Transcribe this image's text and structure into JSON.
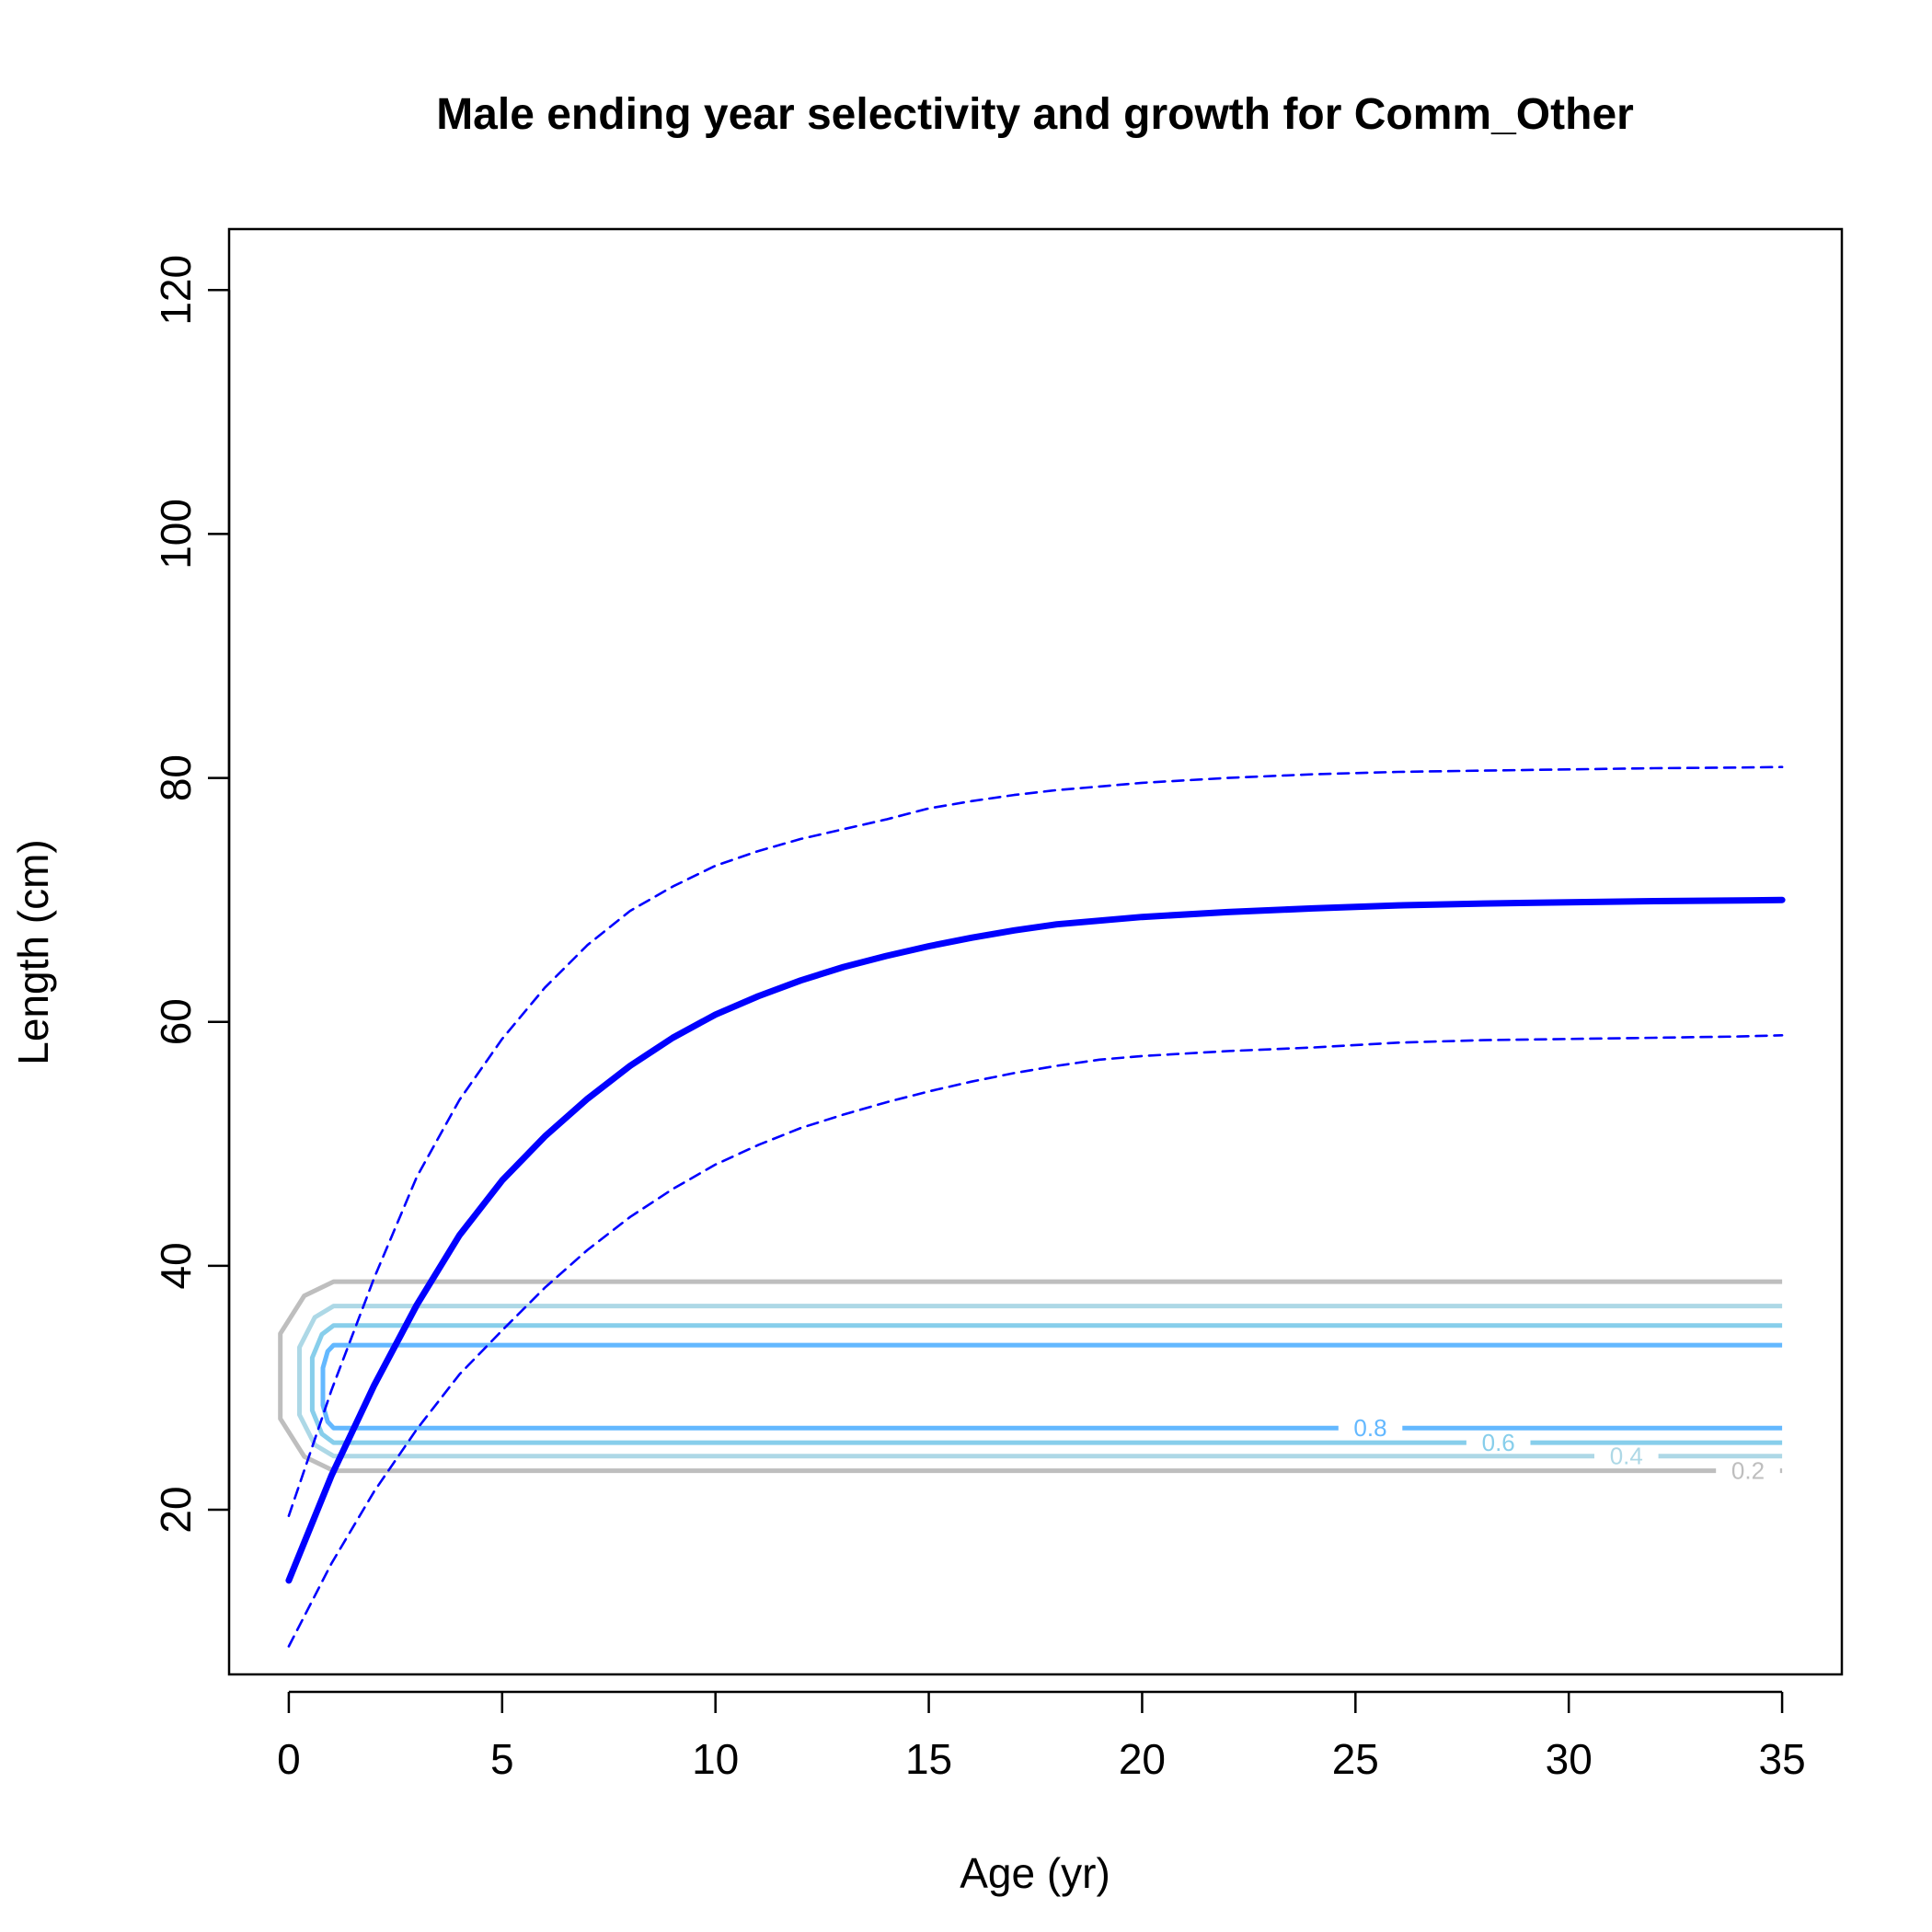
{
  "chart_data": {
    "type": "line",
    "title": "Male ending year selectivity and growth for Comm_Other",
    "xlabel": "Age (yr)",
    "ylabel": "Length (cm)",
    "xlim": [
      -1.4,
      36.4
    ],
    "ylim": [
      6.5,
      125
    ],
    "xticks": [
      0,
      5,
      10,
      15,
      20,
      25,
      30,
      35
    ],
    "yticks": [
      20,
      40,
      60,
      80,
      100,
      120
    ],
    "series": [
      {
        "role": "mean length at age",
        "style": "solid",
        "color": "#0000FF",
        "x": [
          0,
          1,
          2,
          3,
          4,
          5,
          6,
          7,
          8,
          9,
          10,
          11,
          12,
          13,
          14,
          15,
          16,
          17,
          18,
          19,
          20,
          22,
          24,
          26,
          28,
          30,
          32,
          34,
          35
        ],
        "y": [
          14.2,
          22.8,
          30.2,
          36.8,
          42.5,
          47.0,
          50.6,
          53.7,
          56.4,
          58.7,
          60.6,
          62.1,
          63.4,
          64.5,
          65.4,
          66.2,
          66.9,
          67.5,
          68.0,
          68.3,
          68.6,
          69.0,
          69.3,
          69.55,
          69.7,
          69.8,
          69.9,
          69.95,
          70.0
        ]
      },
      {
        "role": "upper interval",
        "style": "dashed",
        "color": "#0000FF",
        "x": [
          0,
          1,
          2,
          3,
          4,
          5,
          6,
          7,
          8,
          9,
          10,
          11,
          12,
          13,
          14,
          15,
          16,
          17,
          18,
          19,
          20,
          22,
          24,
          26,
          28,
          30,
          32,
          34,
          35
        ],
        "y": [
          19.5,
          29.8,
          39.0,
          47.3,
          53.6,
          58.6,
          62.8,
          66.3,
          69.1,
          71.1,
          72.8,
          74.0,
          75.0,
          75.8,
          76.6,
          77.5,
          78.1,
          78.6,
          79.0,
          79.3,
          79.6,
          80.0,
          80.3,
          80.5,
          80.6,
          80.7,
          80.8,
          80.85,
          80.9
        ]
      },
      {
        "role": "lower interval",
        "style": "dashed",
        "color": "#0000FF",
        "x": [
          0,
          1,
          2,
          3,
          4,
          5,
          6,
          7,
          8,
          9,
          10,
          11,
          12,
          13,
          14,
          15,
          16,
          17,
          18,
          19,
          20,
          22,
          24,
          26,
          28,
          30,
          32,
          34,
          35
        ],
        "y": [
          8.8,
          15.6,
          21.5,
          26.6,
          31.1,
          34.7,
          38.2,
          41.3,
          44.0,
          46.3,
          48.3,
          49.9,
          51.3,
          52.4,
          53.4,
          54.3,
          55.1,
          55.8,
          56.4,
          56.9,
          57.2,
          57.6,
          57.9,
          58.3,
          58.5,
          58.6,
          58.7,
          58.8,
          58.9
        ]
      }
    ],
    "contours": [
      {
        "level": "0.2",
        "color": "#BEBEBE",
        "low": 23.2,
        "high": 38.7,
        "x_start": 1.05,
        "x_bulge": -0.2,
        "label_x": 34.2
      },
      {
        "level": "0.4",
        "color": "#ADD8E6",
        "low": 24.4,
        "high": 36.7,
        "x_start": 1.05,
        "x_bulge": 0.25,
        "label_x": 31.35
      },
      {
        "level": "0.6",
        "color": "#87CEEB",
        "low": 25.5,
        "high": 35.1,
        "x_start": 1.05,
        "x_bulge": 0.55,
        "label_x": 28.35
      },
      {
        "level": "0.8",
        "color": "#63B8FF",
        "low": 26.7,
        "high": 33.5,
        "x_start": 1.05,
        "x_bulge": 0.8,
        "label_x": 25.35
      }
    ],
    "contour_x_end": 35,
    "grid": false,
    "legend": "none"
  }
}
